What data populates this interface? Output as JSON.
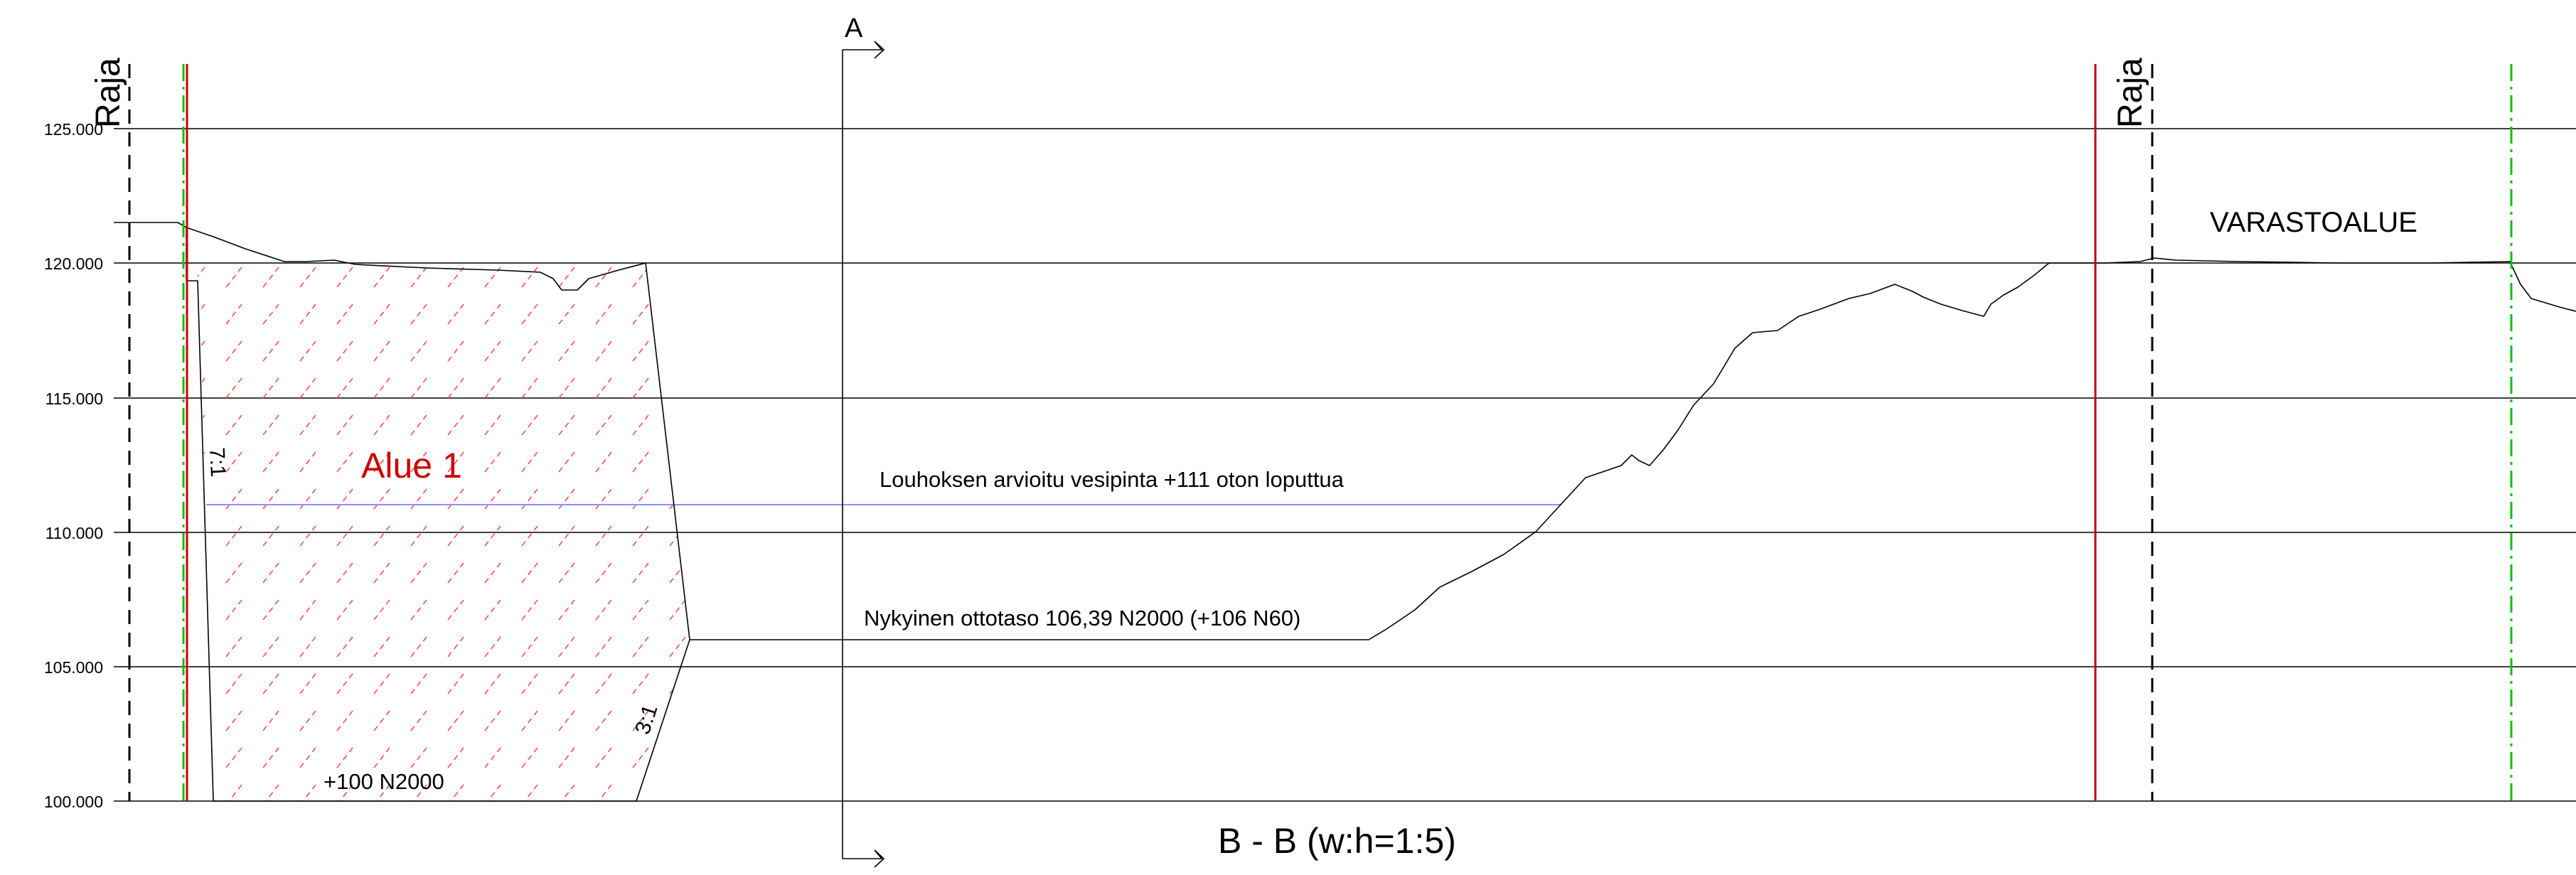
{
  "section": {
    "title": "B - B (w:h=1:5)",
    "cut_marker": "A",
    "elevation_ticks": [
      "125.000",
      "120.000",
      "115.000",
      "110.000",
      "105.000",
      "100.000"
    ],
    "boundary_label": "Raja",
    "storage_label": "VARASTOALUE",
    "area_label": "Alue 1",
    "water_level_label": "Louhoksen arvioitu vesipinta +111 oton loputtua",
    "extraction_level_label": "Nykyinen ottotaso 106,39 N2000 (+106 N60)",
    "bottom_level_label": "+100 N2000",
    "slope_left": "7:1",
    "slope_right": "3:1"
  },
  "colors": {
    "lines": "#000000",
    "boundary_red": "#cc0000",
    "area_label": "#cc0000",
    "hatch": "#ff4d4d",
    "water_line": "#8f8fff",
    "dashdot_green": "#11c011"
  }
}
